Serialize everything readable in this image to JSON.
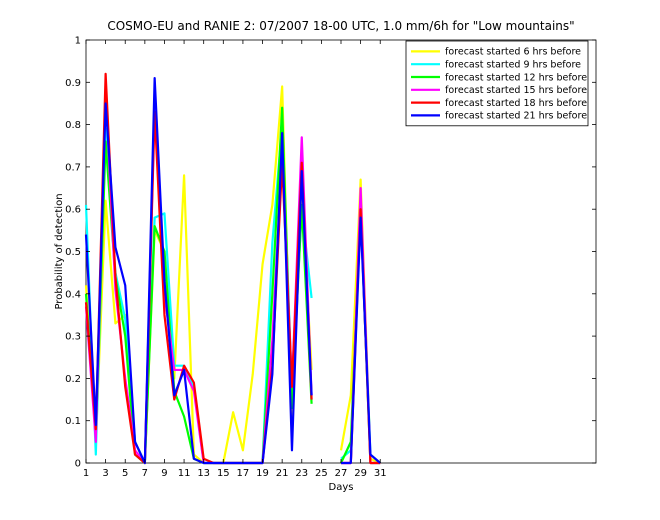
{
  "chart_data": {
    "type": "line",
    "title": "COSMO-EU and RANIE 2: 07/2007 18-00 UTC, 1.0 mm/6h for \"Low mountains\"",
    "xlabel": "Days",
    "ylabel": "Probability of detection",
    "xlim": [
      1,
      53
    ],
    "ylim": [
      0,
      1
    ],
    "xticks": [
      1,
      3,
      5,
      7,
      9,
      11,
      13,
      15,
      17,
      19,
      21,
      23,
      25,
      27,
      29,
      31
    ],
    "yticks": [
      0,
      0.1,
      0.2,
      0.3,
      0.4,
      0.5,
      0.6,
      0.7,
      0.8,
      0.9,
      1
    ],
    "ytick_labels": [
      "0",
      "0.1",
      "0.2",
      "0.3",
      "0.4",
      "0.5",
      "0.6",
      "0.7",
      "0.8",
      "0.9",
      "1"
    ],
    "legend_position": "top-right",
    "grid": false,
    "series": [
      {
        "name": "forecast started 6 hrs before",
        "color": "#ffff00",
        "x": [
          1,
          2,
          3,
          4,
          5,
          6,
          7,
          8,
          9,
          10,
          11,
          12,
          13,
          14,
          15,
          16,
          17,
          18,
          19,
          20,
          21,
          22,
          23,
          24,
          25,
          26,
          27,
          28,
          29,
          30,
          31
        ],
        "y": [
          0.42,
          0.05,
          0.62,
          0.33,
          0.35,
          0.05,
          0.0,
          0.55,
          0.5,
          0.2,
          0.68,
          0.02,
          0.0,
          0.0,
          0.0,
          0.12,
          0.03,
          0.21,
          0.47,
          0.61,
          0.89,
          0.1,
          0.65,
          0.22,
          null,
          null,
          0.03,
          0.16,
          0.67,
          0.01,
          0.0
        ]
      },
      {
        "name": "forecast started 9 hrs before",
        "color": "#00ffff",
        "x": [
          1,
          2,
          3,
          4,
          5,
          6,
          7,
          8,
          9,
          10,
          11,
          12,
          13,
          14,
          15,
          16,
          17,
          18,
          19,
          20,
          21,
          22,
          23,
          24,
          25,
          26,
          27,
          28,
          29,
          30,
          31
        ],
        "y": [
          0.61,
          0.02,
          0.79,
          0.45,
          0.34,
          0.05,
          0.0,
          0.58,
          0.59,
          0.23,
          0.23,
          0.18,
          0.0,
          0.0,
          0.0,
          0.0,
          0.0,
          0.0,
          0.0,
          0.52,
          0.8,
          0.17,
          0.6,
          0.39,
          null,
          null,
          0.01,
          0.03,
          0.62,
          0.02,
          0.0
        ]
      },
      {
        "name": "forecast started 12 hrs before",
        "color": "#00ff00",
        "x": [
          1,
          2,
          3,
          4,
          5,
          6,
          7,
          8,
          9,
          10,
          11,
          12,
          13,
          14,
          15,
          16,
          17,
          18,
          19,
          20,
          21,
          22,
          23,
          24,
          25,
          26,
          27,
          28,
          29,
          30,
          31
        ],
        "y": [
          0.4,
          0.07,
          0.76,
          0.44,
          0.3,
          0.02,
          0.0,
          0.56,
          0.5,
          0.17,
          0.11,
          0.01,
          0.0,
          0.0,
          0.0,
          0.0,
          0.0,
          0.0,
          0.0,
          0.4,
          0.84,
          0.13,
          0.61,
          0.14,
          null,
          null,
          0.0,
          0.05,
          0.6,
          0.0,
          0.0
        ]
      },
      {
        "name": "forecast started 15 hrs before",
        "color": "#ff00ff",
        "x": [
          1,
          2,
          3,
          4,
          5,
          6,
          7,
          8,
          9,
          10,
          11,
          12,
          13,
          14,
          15,
          16,
          17,
          18,
          19,
          20,
          21,
          22,
          23,
          24,
          25,
          26,
          27,
          28,
          29,
          30,
          31
        ],
        "y": [
          0.37,
          0.05,
          0.88,
          0.41,
          0.2,
          0.03,
          0.0,
          0.85,
          0.4,
          0.22,
          0.22,
          0.17,
          0.0,
          0.0,
          0.0,
          0.0,
          0.0,
          0.0,
          0.0,
          0.29,
          0.73,
          0.18,
          0.77,
          0.16,
          null,
          null,
          0.0,
          0.0,
          0.65,
          0.0,
          0.0
        ]
      },
      {
        "name": "forecast started 18 hrs before",
        "color": "#ff0000",
        "x": [
          1,
          2,
          3,
          4,
          5,
          6,
          7,
          8,
          9,
          10,
          11,
          12,
          13,
          14,
          15,
          16,
          17,
          18,
          19,
          20,
          21,
          22,
          23,
          24,
          25,
          26,
          27,
          28,
          29,
          30,
          31
        ],
        "y": [
          0.38,
          0.08,
          0.92,
          0.44,
          0.18,
          0.02,
          0.0,
          0.83,
          0.35,
          0.15,
          0.23,
          0.19,
          0.01,
          0.0,
          0.0,
          0.0,
          0.0,
          0.0,
          0.0,
          0.23,
          0.71,
          0.18,
          0.71,
          0.15,
          null,
          null,
          0.0,
          0.0,
          0.6,
          0.0,
          0.0
        ]
      },
      {
        "name": "forecast started 21 hrs before",
        "color": "#0000ff",
        "x": [
          1,
          2,
          3,
          4,
          5,
          6,
          7,
          8,
          9,
          10,
          11,
          12,
          13,
          14,
          15,
          16,
          17,
          18,
          19,
          20,
          21,
          22,
          23,
          24,
          25,
          26,
          27,
          28,
          29,
          30,
          31
        ],
        "y": [
          0.54,
          0.09,
          0.85,
          0.51,
          0.42,
          0.05,
          0.0,
          0.91,
          0.43,
          0.16,
          0.22,
          0.01,
          0.0,
          0.0,
          0.0,
          0.0,
          0.0,
          0.0,
          0.0,
          0.21,
          0.78,
          0.03,
          0.69,
          0.16,
          null,
          null,
          0.0,
          0.0,
          0.58,
          0.02,
          0.0
        ]
      }
    ]
  }
}
